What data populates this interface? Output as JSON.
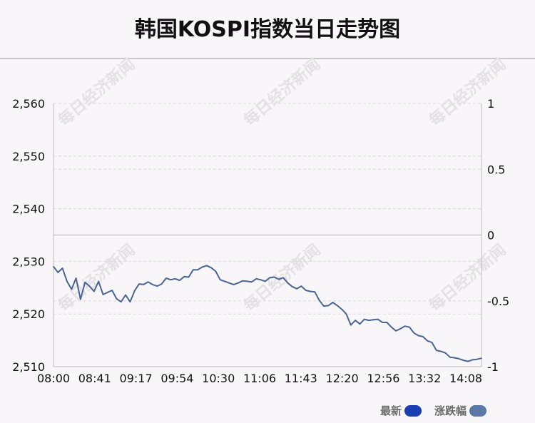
{
  "title": "韩国KOSPI指数当日走势图",
  "watermark": "每日经济新闻",
  "colors": {
    "line": "#4a6494",
    "legend_latest": "#1a3fb0",
    "legend_change": "#5a78a8",
    "grid": "#d9d9d9",
    "zero_line": "#c8c8c8"
  },
  "legend": {
    "latest": "最新",
    "change": "涨跌幅"
  },
  "chart_data": {
    "type": "line",
    "title": "韩国KOSPI指数当日走势图",
    "x_tick_labels": [
      "08:00",
      "08:41",
      "09:17",
      "09:54",
      "10:30",
      "11:06",
      "11:43",
      "12:20",
      "12:56",
      "13:32",
      "14:08"
    ],
    "y_left_ticks": [
      "2,560",
      "2,550",
      "2,540",
      "2,530",
      "2,520",
      "2,510"
    ],
    "y_right_ticks": [
      "1",
      "0.5",
      "0",
      "-0.5",
      "-1"
    ],
    "ylim_left": [
      2510,
      2560
    ],
    "ylim_right": [
      -1,
      1
    ],
    "grid": true,
    "series": [
      {
        "axis": "left",
        "points": [
          [
            "08:00",
            2529.0
          ],
          [
            "08:04",
            2527.9
          ],
          [
            "08:08",
            2528.7
          ],
          [
            "08:12",
            2526.2
          ],
          [
            "08:16",
            2524.7
          ],
          [
            "08:20",
            2526.8
          ],
          [
            "08:24",
            2522.8
          ],
          [
            "08:28",
            2526.0
          ],
          [
            "08:32",
            2525.3
          ],
          [
            "08:36",
            2524.3
          ],
          [
            "08:40",
            2526.2
          ],
          [
            "08:44",
            2523.7
          ],
          [
            "08:48",
            2524.1
          ],
          [
            "08:52",
            2524.5
          ],
          [
            "08:56",
            2522.9
          ],
          [
            "09:00",
            2522.3
          ],
          [
            "09:04",
            2523.6
          ],
          [
            "09:08",
            2522.3
          ],
          [
            "09:12",
            2524.4
          ],
          [
            "09:16",
            2525.7
          ],
          [
            "09:20",
            2525.6
          ],
          [
            "09:24",
            2526.1
          ],
          [
            "09:28",
            2525.6
          ],
          [
            "09:32",
            2525.3
          ],
          [
            "09:36",
            2525.7
          ],
          [
            "09:40",
            2526.8
          ],
          [
            "09:44",
            2526.5
          ],
          [
            "09:48",
            2526.7
          ],
          [
            "09:52",
            2526.4
          ],
          [
            "09:56",
            2527.1
          ],
          [
            "10:00",
            2527.0
          ],
          [
            "10:04",
            2528.4
          ],
          [
            "10:08",
            2528.4
          ],
          [
            "10:12",
            2528.9
          ],
          [
            "10:16",
            2529.2
          ],
          [
            "10:20",
            2528.8
          ],
          [
            "10:24",
            2528.1
          ],
          [
            "10:28",
            2526.5
          ],
          [
            "10:32",
            2526.2
          ],
          [
            "10:36",
            2525.9
          ],
          [
            "10:40",
            2525.6
          ],
          [
            "10:44",
            2525.9
          ],
          [
            "10:48",
            2526.3
          ],
          [
            "10:52",
            2526.2
          ],
          [
            "10:56",
            2526.1
          ],
          [
            "11:00",
            2526.7
          ],
          [
            "11:04",
            2526.5
          ],
          [
            "11:08",
            2526.2
          ],
          [
            "11:12",
            2526.9
          ],
          [
            "11:16",
            2527.0
          ],
          [
            "11:20",
            2526.6
          ],
          [
            "11:24",
            2526.9
          ],
          [
            "11:28",
            2525.9
          ],
          [
            "11:32",
            2525.2
          ],
          [
            "11:36",
            2524.8
          ],
          [
            "11:40",
            2525.3
          ],
          [
            "11:44",
            2524.5
          ],
          [
            "11:48",
            2524.3
          ],
          [
            "11:52",
            2524.2
          ],
          [
            "11:56",
            2522.6
          ],
          [
            "12:00",
            2521.5
          ],
          [
            "12:04",
            2521.6
          ],
          [
            "12:08",
            2522.2
          ],
          [
            "12:12",
            2521.6
          ],
          [
            "12:16",
            2520.9
          ],
          [
            "12:20",
            2520.0
          ],
          [
            "12:24",
            2517.9
          ],
          [
            "12:28",
            2518.8
          ],
          [
            "12:32",
            2518.1
          ],
          [
            "12:36",
            2519.0
          ],
          [
            "12:40",
            2518.8
          ],
          [
            "12:44",
            2518.9
          ],
          [
            "12:48",
            2519.0
          ],
          [
            "12:52",
            2518.4
          ],
          [
            "12:56",
            2518.4
          ],
          [
            "13:00",
            2517.5
          ],
          [
            "13:04",
            2516.8
          ],
          [
            "13:08",
            2517.2
          ],
          [
            "13:12",
            2517.7
          ],
          [
            "13:16",
            2517.5
          ],
          [
            "13:20",
            2516.4
          ],
          [
            "13:24",
            2515.9
          ],
          [
            "13:28",
            2515.7
          ],
          [
            "13:32",
            2514.9
          ],
          [
            "13:36",
            2514.6
          ],
          [
            "13:40",
            2513.1
          ],
          [
            "13:44",
            2512.9
          ],
          [
            "13:48",
            2512.6
          ],
          [
            "13:52",
            2511.8
          ],
          [
            "13:56",
            2511.7
          ],
          [
            "14:00",
            2511.5
          ],
          [
            "14:04",
            2511.2
          ],
          [
            "14:08",
            2511.0
          ],
          [
            "14:12",
            2511.3
          ],
          [
            "14:16",
            2511.4
          ],
          [
            "14:20",
            2511.6
          ]
        ]
      }
    ]
  }
}
